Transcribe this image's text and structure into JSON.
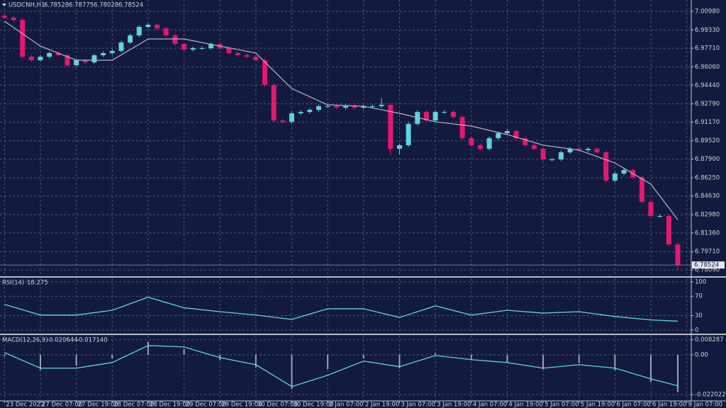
{
  "chart_data": [
    {
      "type": "candlestick",
      "title": "USDCNH,H1",
      "header_values": [
        6.78528,
        6.78775,
        6.78028,
        6.78524
      ],
      "open": [
        7.006,
        7.0041,
        7.0022,
        6.9696,
        6.9665,
        6.9696,
        6.9728,
        6.9709,
        6.9621,
        6.9665,
        6.9646,
        6.9709,
        6.9728,
        6.9747,
        6.9822,
        6.9885,
        6.996,
        6.9979,
        6.9947,
        6.9885,
        6.9809,
        6.9759,
        6.9772,
        6.9772,
        6.9809,
        6.9772,
        6.9728,
        6.9709,
        6.9696,
        6.9665,
        6.9446,
        6.9132,
        6.912,
        6.9195,
        6.9207,
        6.9226,
        6.9258,
        6.9258,
        6.9245,
        6.9258,
        6.9245,
        6.9258,
        6.9258,
        6.927,
        6.8881,
        6.8913,
        6.9101,
        6.9207,
        6.9132,
        6.9207,
        6.9207,
        6.9163,
        6.8975,
        6.8913,
        6.8881,
        6.8975,
        6.9019,
        6.9038,
        6.8975,
        6.8913,
        6.8881,
        6.8787,
        6.8787,
        6.885,
        6.8881,
        6.8869,
        6.8881,
        6.885,
        6.8599,
        6.8662,
        6.8693,
        6.8631,
        6.8411,
        6.8286,
        6.8286,
        6.8035
      ],
      "high": [
        7.0075,
        7.0056,
        7.0037,
        6.9711,
        6.9711,
        6.9743,
        6.9743,
        6.9724,
        6.968,
        6.968,
        6.9724,
        6.9743,
        6.9762,
        6.9837,
        6.99,
        6.9975,
        6.9994,
        6.9994,
        6.9962,
        6.99,
        6.9824,
        6.9787,
        6.9787,
        6.9824,
        6.9824,
        6.9787,
        6.9743,
        6.9724,
        6.9711,
        6.968,
        6.9461,
        6.9147,
        6.921,
        6.9222,
        6.9241,
        6.9273,
        6.9273,
        6.9273,
        6.9273,
        6.9273,
        6.9273,
        6.9273,
        6.933,
        6.9285,
        6.8928,
        6.9116,
        6.9222,
        6.9222,
        6.9222,
        6.9222,
        6.9222,
        6.9178,
        6.899,
        6.8928,
        6.899,
        6.9034,
        6.9053,
        6.9053,
        6.899,
        6.8928,
        6.8896,
        6.8802,
        6.8865,
        6.8896,
        6.8896,
        6.8896,
        6.8896,
        6.8865,
        6.8677,
        6.8708,
        6.8708,
        6.8646,
        6.8426,
        6.8301,
        6.8301,
        6.805
      ],
      "low": [
        7.0026,
        7.0007,
        6.9681,
        6.965,
        6.965,
        6.9681,
        6.9694,
        6.9606,
        6.9606,
        6.9631,
        6.9631,
        6.9694,
        6.9713,
        6.9732,
        6.9807,
        6.987,
        6.9945,
        6.9932,
        6.987,
        6.9794,
        6.9744,
        6.9744,
        6.9757,
        6.9757,
        6.9757,
        6.9713,
        6.9694,
        6.9681,
        6.965,
        6.9431,
        6.9117,
        6.9105,
        6.9105,
        6.918,
        6.9192,
        6.9211,
        6.9243,
        6.923,
        6.923,
        6.923,
        6.923,
        6.9243,
        6.9243,
        6.8826,
        6.883,
        6.8898,
        6.9086,
        6.9117,
        6.9117,
        6.9192,
        6.9148,
        6.896,
        6.8898,
        6.8866,
        6.8866,
        6.896,
        6.9004,
        6.896,
        6.8898,
        6.8866,
        6.8772,
        6.8772,
        6.8772,
        6.8835,
        6.8854,
        6.8854,
        6.8835,
        6.8584,
        6.8584,
        6.8647,
        6.8616,
        6.8396,
        6.8271,
        6.8271,
        6.802,
        6.78028
      ],
      "close": [
        7.0041,
        7.0022,
        6.9696,
        6.9665,
        6.9696,
        6.9728,
        6.9709,
        6.9621,
        6.9665,
        6.9646,
        6.9709,
        6.9728,
        6.9747,
        6.9822,
        6.9885,
        6.996,
        6.9979,
        6.9947,
        6.9885,
        6.9809,
        6.9759,
        6.9772,
        6.9772,
        6.9809,
        6.9772,
        6.9728,
        6.9709,
        6.9696,
        6.9665,
        6.9446,
        6.9132,
        6.912,
        6.9195,
        6.9207,
        6.9226,
        6.9258,
        6.9258,
        6.9245,
        6.9258,
        6.9245,
        6.9258,
        6.9258,
        6.927,
        6.8881,
        6.8913,
        6.9101,
        6.9207,
        6.9132,
        6.9207,
        6.9207,
        6.9163,
        6.8975,
        6.8913,
        6.8881,
        6.8975,
        6.9019,
        6.9038,
        6.8975,
        6.8913,
        6.8881,
        6.8787,
        6.8787,
        6.885,
        6.8881,
        6.8869,
        6.8881,
        6.885,
        6.8599,
        6.8662,
        6.8693,
        6.8631,
        6.8411,
        6.8286,
        6.8286,
        6.8035,
        6.78524
      ],
      "up_color": "#5fd3df",
      "down_color": "#e4176e",
      "ma": {
        "x": [
          0,
          4,
          8,
          12,
          16,
          20,
          24,
          28,
          32,
          36,
          40,
          44,
          48,
          52,
          56,
          60,
          64,
          68,
          72,
          75
        ],
        "values": [
          7.001,
          6.979,
          6.9665,
          6.9665,
          6.9853,
          6.9853,
          6.979,
          6.9728,
          6.9414,
          6.927,
          6.9258,
          6.9195,
          6.912,
          6.9082,
          6.9007,
          6.8913,
          6.8869,
          6.8756,
          6.8568,
          6.8254
        ],
        "color": "#b4b6c6"
      },
      "xlim": [
        -0.5,
        76.5
      ],
      "ylim": [
        6.7753,
        7.0198
      ],
      "yticks": [
        {
          "value": 7.0098,
          "label": "7.00980"
        },
        {
          "value": 6.9933,
          "label": "6.99330"
        },
        {
          "value": 6.9771,
          "label": "6.97710"
        },
        {
          "value": 6.9606,
          "label": "6.96060"
        },
        {
          "value": 6.9444,
          "label": "6.94440"
        },
        {
          "value": 6.9279,
          "label": "6.92790"
        },
        {
          "value": 6.9117,
          "label": "6.91170"
        },
        {
          "value": 6.8952,
          "label": "6.89520"
        },
        {
          "value": 6.879,
          "label": "6.87900"
        },
        {
          "value": 6.8625,
          "label": "6.86250"
        },
        {
          "value": 6.8463,
          "label": "6.84630"
        },
        {
          "value": 6.8298,
          "label": "6.82980"
        },
        {
          "value": 6.8136,
          "label": "6.81360"
        },
        {
          "value": 6.7971,
          "label": "6.79710"
        },
        {
          "value": 6.7809,
          "label": "6.78090"
        }
      ],
      "xticks": [
        {
          "value": 0,
          "label": "23 Dec 2022"
        },
        {
          "value": 4,
          "label": "27 Dec 07:00"
        },
        {
          "value": 8,
          "label": "27 Dec 19:00"
        },
        {
          "value": 12,
          "label": "28 Dec 07:00"
        },
        {
          "value": 16,
          "label": "28 Dec 19:00"
        },
        {
          "value": 20,
          "label": "29 Dec 07:00"
        },
        {
          "value": 24,
          "label": "29 Dec 19:00"
        },
        {
          "value": 28,
          "label": "30 Dec 07:00"
        },
        {
          "value": 32,
          "label": "30 Dec 19:00"
        },
        {
          "value": 36,
          "label": "2 Jan 07:00"
        },
        {
          "value": 40,
          "label": "2 Jan 19:00"
        },
        {
          "value": 44,
          "label": "3 Jan 07:00"
        },
        {
          "value": 48,
          "label": "3 Jan 19:00"
        },
        {
          "value": 52,
          "label": "4 Jan 07:00"
        },
        {
          "value": 56,
          "label": "4 Jan 19:00"
        },
        {
          "value": 60,
          "label": "5 Jan 07:00"
        },
        {
          "value": 64,
          "label": "5 Jan 19:00"
        },
        {
          "value": 68,
          "label": "6 Jan 07:00"
        },
        {
          "value": 72,
          "label": "6 Jan 19:00"
        },
        {
          "value": 76,
          "label": "9 Jan 07:00"
        }
      ],
      "grid": true
    },
    {
      "type": "line",
      "title": "RSI(14)",
      "x": [
        0,
        4,
        8,
        12,
        16,
        20,
        24,
        28,
        32,
        36,
        40,
        44,
        48,
        52,
        56,
        60,
        64,
        68,
        72,
        75
      ],
      "values": [
        53,
        31,
        31,
        41,
        68,
        46,
        38,
        31,
        22,
        44,
        44,
        26,
        50,
        31,
        41,
        35,
        38,
        28,
        21,
        18.275
      ],
      "color": "#5fd3df",
      "ylim": [
        -6,
        107
      ],
      "yticks": [
        100,
        70,
        30,
        0
      ],
      "grid": true
    },
    {
      "type": "macd",
      "title": "MACD(12,26,9)",
      "header_values": [
        -0.020644,
        {
          "value": -0.01714,
          "label": "-0.017140"
        }
      ],
      "x": [
        0,
        4,
        8,
        12,
        16,
        20,
        24,
        28,
        32,
        36,
        40,
        44,
        48,
        52,
        56,
        60,
        64,
        68,
        72,
        75
      ],
      "histogram": [
        -0.001,
        -0.0085,
        -0.006,
        -0.002,
        0.007,
        0.003,
        -0.003,
        -0.007,
        -0.019,
        -0.008,
        -0.002,
        -0.0075,
        0.001,
        -0.003,
        -0.004,
        -0.008,
        -0.0045,
        -0.0085,
        -0.015,
        -0.020644
      ],
      "signal": [
        0.0012,
        -0.0074,
        -0.0074,
        -0.0043,
        0.0051,
        0.0043,
        -0.0016,
        -0.0055,
        -0.0176,
        -0.0113,
        -0.0035,
        -0.0066,
        -0.0004,
        -0.0027,
        -0.0043,
        -0.0074,
        -0.0055,
        -0.0074,
        -0.0133,
        -0.01714
      ],
      "histogram_color": "#9ea2b4",
      "color": "#5fd3df",
      "ylim": [
        -0.0255,
        0.0105
      ],
      "yticks": [
        0.008287,
        {
          "value": 0,
          "label": "0.00"
        },
        -0.022022
      ],
      "grid": true
    }
  ]
}
